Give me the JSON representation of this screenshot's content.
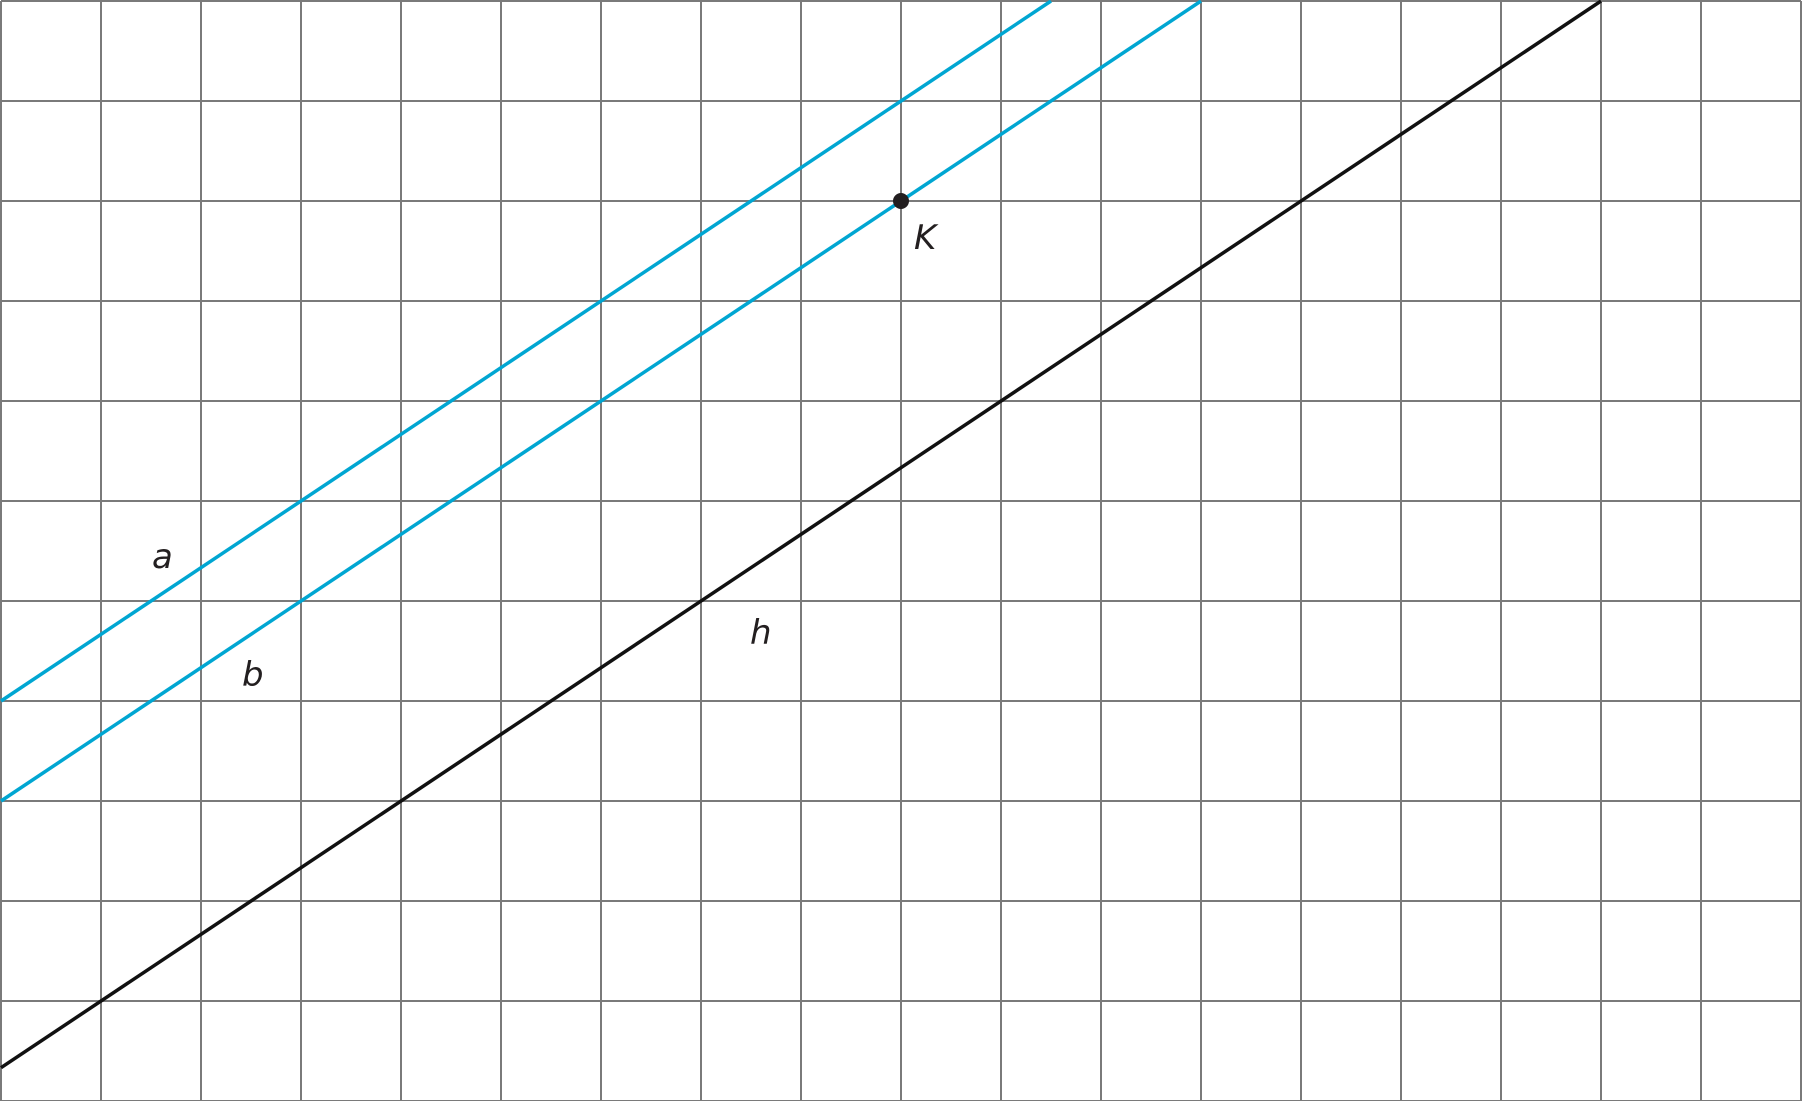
{
  "labels": {
    "a": "a",
    "b": "b",
    "h": "h",
    "K": "K"
  },
  "colors": {
    "grid": "#7a7a7a",
    "parallel_lines": "#00a6d2",
    "line_h": "#111111",
    "point": "#231f20"
  },
  "grid": {
    "columns": 18,
    "rows": 11
  }
}
